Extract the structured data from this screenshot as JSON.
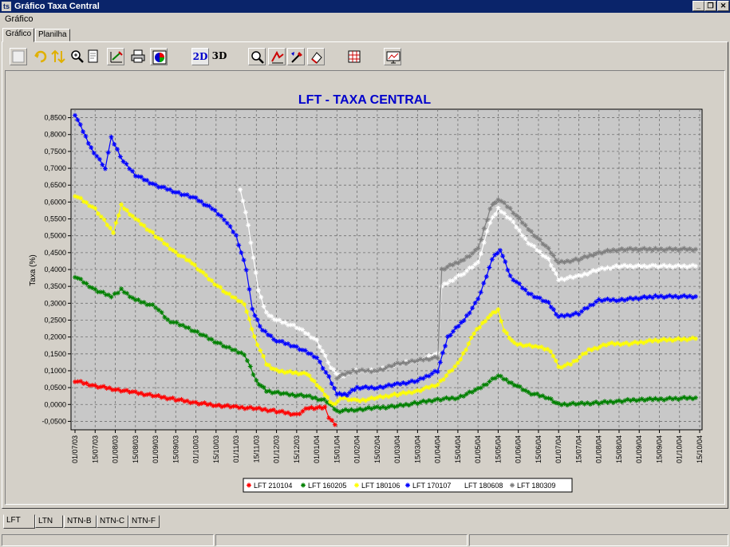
{
  "window": {
    "title": "Gráfico Taxa Central",
    "app_icon": "ts"
  },
  "menu": {
    "items": [
      "Gráfico"
    ]
  },
  "top_tabs": [
    "Gráfico",
    "Planilha"
  ],
  "toolbar": {
    "icons": [
      "blank-icon",
      "rotate-icon",
      "move-icon",
      "zoom-icon",
      "page-icon",
      "edit-series-icon",
      "print-icon",
      "gallery-icon",
      "2d-icon",
      "3d-icon",
      "zoom-tool-icon",
      "data-tool-icon",
      "brush-tool-icon",
      "eraser-tool-icon",
      "table-grid-icon",
      "export-icon"
    ],
    "label_2d": "2D",
    "label_3d": "3D"
  },
  "bottom_tabs": [
    "LFT",
    "LTN",
    "NTN-B",
    "NTN-C",
    "NTN-F"
  ],
  "chart_data": {
    "type": "line",
    "title": "LFT - TAXA CENTRAL",
    "ylabel": "Taxa (%)",
    "xlabel": "",
    "ylim": [
      -0.075,
      0.875
    ],
    "yticks": [
      -0.05,
      0.0,
      0.05,
      0.1,
      0.15,
      0.2,
      0.25,
      0.3,
      0.35,
      0.4,
      0.45,
      0.5,
      0.55,
      0.6,
      0.65,
      0.7,
      0.75,
      0.8,
      0.85
    ],
    "ytick_labels": [
      "-0,0500",
      "0,0000",
      "0,0500",
      "0,1000",
      "0,1500",
      "0,2000",
      "0,2500",
      "0,3000",
      "0,3500",
      "0,4000",
      "0,4500",
      "0,5000",
      "0,5500",
      "0,6000",
      "0,6500",
      "0,7000",
      "0,7500",
      "0,8000",
      "0,8500"
    ],
    "x_ticks": [
      "01/07/03",
      "15/07/03",
      "01/08/03",
      "15/08/03",
      "01/09/03",
      "15/09/03",
      "01/10/03",
      "15/10/03",
      "01/11/03",
      "15/11/03",
      "01/12/03",
      "15/12/03",
      "01/01/04",
      "15/01/04",
      "01/02/04",
      "15/02/04",
      "01/03/04",
      "15/03/04",
      "01/04/04",
      "15/04/04",
      "01/05/04",
      "15/05/04",
      "01/06/04",
      "15/06/04",
      "01/07/04",
      "15/07/04",
      "01/08/04",
      "15/08/04",
      "01/09/04",
      "15/09/04",
      "01/10/04",
      "15/10/04"
    ],
    "grid": true,
    "legend_position": "bottom",
    "series": [
      {
        "name": "LFT 210104",
        "color": "#ff0000",
        "points": [
          [
            0,
            0.07
          ],
          [
            1,
            0.055
          ],
          [
            2,
            0.045
          ],
          [
            3,
            0.035
          ],
          [
            4,
            0.025
          ],
          [
            5,
            0.015
          ],
          [
            6,
            0.005
          ],
          [
            7,
            -0.002
          ],
          [
            8,
            -0.008
          ],
          [
            9,
            -0.012
          ],
          [
            10,
            -0.02
          ],
          [
            11,
            -0.03
          ],
          [
            11.6,
            -0.01
          ],
          [
            12.4,
            -0.01
          ],
          [
            12.6,
            -0.04
          ],
          [
            12.9,
            -0.06
          ]
        ]
      },
      {
        "name": "LFT 160205",
        "color": "#008000",
        "points": [
          [
            0,
            0.38
          ],
          [
            1,
            0.34
          ],
          [
            1.8,
            0.32
          ],
          [
            2.3,
            0.34
          ],
          [
            3,
            0.31
          ],
          [
            4,
            0.29
          ],
          [
            4.6,
            0.25
          ],
          [
            5.5,
            0.23
          ],
          [
            6.5,
            0.2
          ],
          [
            7.5,
            0.17
          ],
          [
            8.4,
            0.15
          ],
          [
            9,
            0.07
          ],
          [
            9.5,
            0.04
          ],
          [
            10.5,
            0.03
          ],
          [
            11.5,
            0.025
          ],
          [
            12.5,
            0.01
          ],
          [
            13,
            -0.02
          ],
          [
            14,
            -0.015
          ],
          [
            15,
            -0.01
          ],
          [
            16,
            -0.005
          ],
          [
            17,
            0.005
          ],
          [
            18,
            0.015
          ],
          [
            19,
            0.02
          ],
          [
            20,
            0.045
          ],
          [
            21,
            0.085
          ],
          [
            21.8,
            0.06
          ],
          [
            22.5,
            0.035
          ],
          [
            23.5,
            0.02
          ],
          [
            24,
            0.0
          ],
          [
            25,
            0.002
          ],
          [
            26,
            0.005
          ],
          [
            27,
            0.01
          ],
          [
            28,
            0.015
          ],
          [
            28.8,
            0.015
          ],
          [
            30.8,
            0.02
          ]
        ]
      },
      {
        "name": "LFT 180106",
        "color": "#ffff00",
        "points": [
          [
            0,
            0.62
          ],
          [
            1,
            0.58
          ],
          [
            1.9,
            0.51
          ],
          [
            2.3,
            0.59
          ],
          [
            3,
            0.55
          ],
          [
            4,
            0.5
          ],
          [
            5,
            0.45
          ],
          [
            5.8,
            0.42
          ],
          [
            6.5,
            0.38
          ],
          [
            7.5,
            0.33
          ],
          [
            8.4,
            0.3
          ],
          [
            8.9,
            0.2
          ],
          [
            9.5,
            0.12
          ],
          [
            10,
            0.1
          ],
          [
            11.5,
            0.09
          ],
          [
            12,
            0.06
          ],
          [
            12.8,
            0.0
          ],
          [
            13.3,
            0.02
          ],
          [
            14,
            0.01
          ],
          [
            15,
            0.02
          ],
          [
            16,
            0.03
          ],
          [
            17,
            0.04
          ],
          [
            18,
            0.06
          ],
          [
            19,
            0.12
          ],
          [
            19.8,
            0.21
          ],
          [
            20.5,
            0.26
          ],
          [
            21,
            0.28
          ],
          [
            21.3,
            0.22
          ],
          [
            21.8,
            0.18
          ],
          [
            23,
            0.17
          ],
          [
            23.6,
            0.16
          ],
          [
            24,
            0.11
          ],
          [
            24.6,
            0.12
          ],
          [
            25.5,
            0.16
          ],
          [
            26.5,
            0.18
          ],
          [
            27.5,
            0.18
          ],
          [
            28.8,
            0.19
          ],
          [
            30.8,
            0.195
          ]
        ]
      },
      {
        "name": "LFT 170107",
        "color": "#0000ff",
        "points": [
          [
            0,
            0.86
          ],
          [
            0.8,
            0.76
          ],
          [
            1.5,
            0.7
          ],
          [
            1.8,
            0.79
          ],
          [
            2.4,
            0.72
          ],
          [
            3,
            0.68
          ],
          [
            4,
            0.65
          ],
          [
            5,
            0.63
          ],
          [
            6,
            0.61
          ],
          [
            6.8,
            0.58
          ],
          [
            7.4,
            0.55
          ],
          [
            8,
            0.5
          ],
          [
            8.5,
            0.4
          ],
          [
            8.8,
            0.28
          ],
          [
            9.3,
            0.22
          ],
          [
            10,
            0.19
          ],
          [
            11,
            0.17
          ],
          [
            12,
            0.14
          ],
          [
            12.6,
            0.08
          ],
          [
            13,
            0.03
          ],
          [
            13.5,
            0.03
          ],
          [
            14,
            0.05
          ],
          [
            15,
            0.05
          ],
          [
            16,
            0.06
          ],
          [
            17,
            0.07
          ],
          [
            18,
            0.1
          ],
          [
            18.5,
            0.2
          ],
          [
            19.3,
            0.25
          ],
          [
            20,
            0.31
          ],
          [
            20.7,
            0.43
          ],
          [
            21.1,
            0.46
          ],
          [
            21.6,
            0.38
          ],
          [
            22.5,
            0.33
          ],
          [
            23.5,
            0.3
          ],
          [
            24,
            0.26
          ],
          [
            25,
            0.27
          ],
          [
            26,
            0.31
          ],
          [
            27,
            0.31
          ],
          [
            28.8,
            0.32
          ],
          [
            30.8,
            0.32
          ]
        ]
      },
      {
        "name": "LFT 180608",
        "color": "#ffffff",
        "points": [
          [
            8.2,
            0.64
          ],
          [
            8.6,
            0.53
          ],
          [
            9.1,
            0.34
          ],
          [
            9.5,
            0.27
          ],
          [
            10,
            0.25
          ],
          [
            11,
            0.23
          ],
          [
            12,
            0.19
          ],
          [
            12.7,
            0.11
          ],
          [
            13.2,
            0.08
          ],
          [
            13.8,
            0.1
          ],
          [
            15,
            0.1
          ],
          [
            16,
            0.12
          ],
          [
            17,
            0.13
          ],
          [
            18,
            0.15
          ],
          [
            18.2,
            0.35
          ],
          [
            19.3,
            0.39
          ],
          [
            20,
            0.42
          ],
          [
            20.6,
            0.54
          ],
          [
            21,
            0.58
          ],
          [
            21.6,
            0.55
          ],
          [
            22.5,
            0.48
          ],
          [
            23.5,
            0.43
          ],
          [
            24,
            0.37
          ],
          [
            25,
            0.38
          ],
          [
            26,
            0.4
          ],
          [
            27,
            0.41
          ],
          [
            28.8,
            0.41
          ],
          [
            30.8,
            0.41
          ]
        ]
      },
      {
        "name": "LFT 180309",
        "color": "#808080",
        "points": [
          [
            13,
            0.08
          ],
          [
            13.8,
            0.1
          ],
          [
            15,
            0.1
          ],
          [
            16,
            0.12
          ],
          [
            17,
            0.13
          ],
          [
            18,
            0.14
          ],
          [
            18.2,
            0.4
          ],
          [
            19.3,
            0.43
          ],
          [
            20,
            0.46
          ],
          [
            20.6,
            0.58
          ],
          [
            21,
            0.61
          ],
          [
            21.6,
            0.58
          ],
          [
            22.5,
            0.52
          ],
          [
            23.5,
            0.46
          ],
          [
            24,
            0.42
          ],
          [
            25,
            0.43
          ],
          [
            26,
            0.45
          ],
          [
            27,
            0.46
          ],
          [
            28.8,
            0.46
          ],
          [
            30.8,
            0.46
          ]
        ]
      }
    ]
  }
}
